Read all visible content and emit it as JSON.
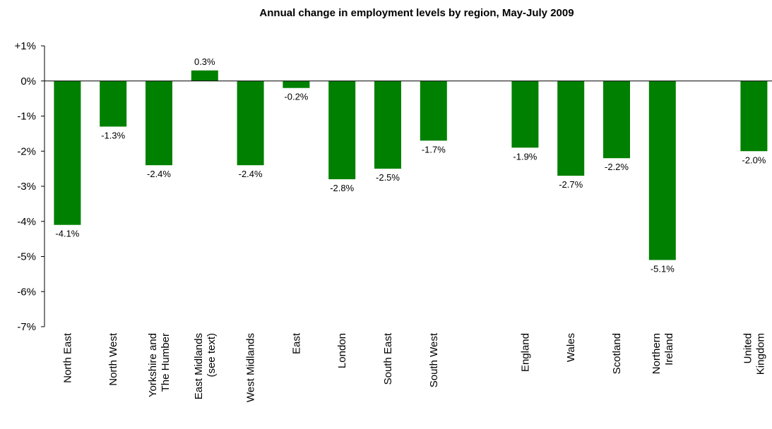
{
  "chart_data": {
    "type": "bar",
    "title": "Annual change in employment levels by region, May-July 2009",
    "xlabel": "",
    "ylabel": "",
    "ylim": [
      -7,
      1
    ],
    "y_ticks": [
      "+1%",
      "0%",
      "-1%",
      "-2%",
      "-3%",
      "-4%",
      "-5%",
      "-6%",
      "-7%"
    ],
    "bar_color": "#008000",
    "grid": false,
    "categories": [
      [
        "North East"
      ],
      [
        "North West"
      ],
      [
        "Yorkshire and",
        "The Humber"
      ],
      [
        "East Midlands",
        "(see text)"
      ],
      [
        "West Midlands"
      ],
      [
        "East"
      ],
      [
        "London"
      ],
      [
        "South East"
      ],
      [
        "South West"
      ],
      [
        "England"
      ],
      [
        "Wales"
      ],
      [
        "Scotland"
      ],
      [
        "Northern",
        "Ireland"
      ],
      [
        "United",
        "Kingdom"
      ]
    ],
    "values": [
      -4.1,
      -1.3,
      -2.4,
      0.3,
      -2.4,
      -0.2,
      -2.8,
      -2.5,
      -1.7,
      -1.9,
      -2.7,
      -2.2,
      -5.1,
      -2.0
    ],
    "value_labels": [
      "-4.1%",
      "-1.3%",
      "-2.4%",
      "0.3%",
      "-2.4%",
      "-0.2%",
      "-2.8%",
      "-2.5%",
      "-1.7%",
      "-1.9%",
      "-2.7%",
      "-2.2%",
      "-5.1%",
      "-2.0%"
    ]
  }
}
